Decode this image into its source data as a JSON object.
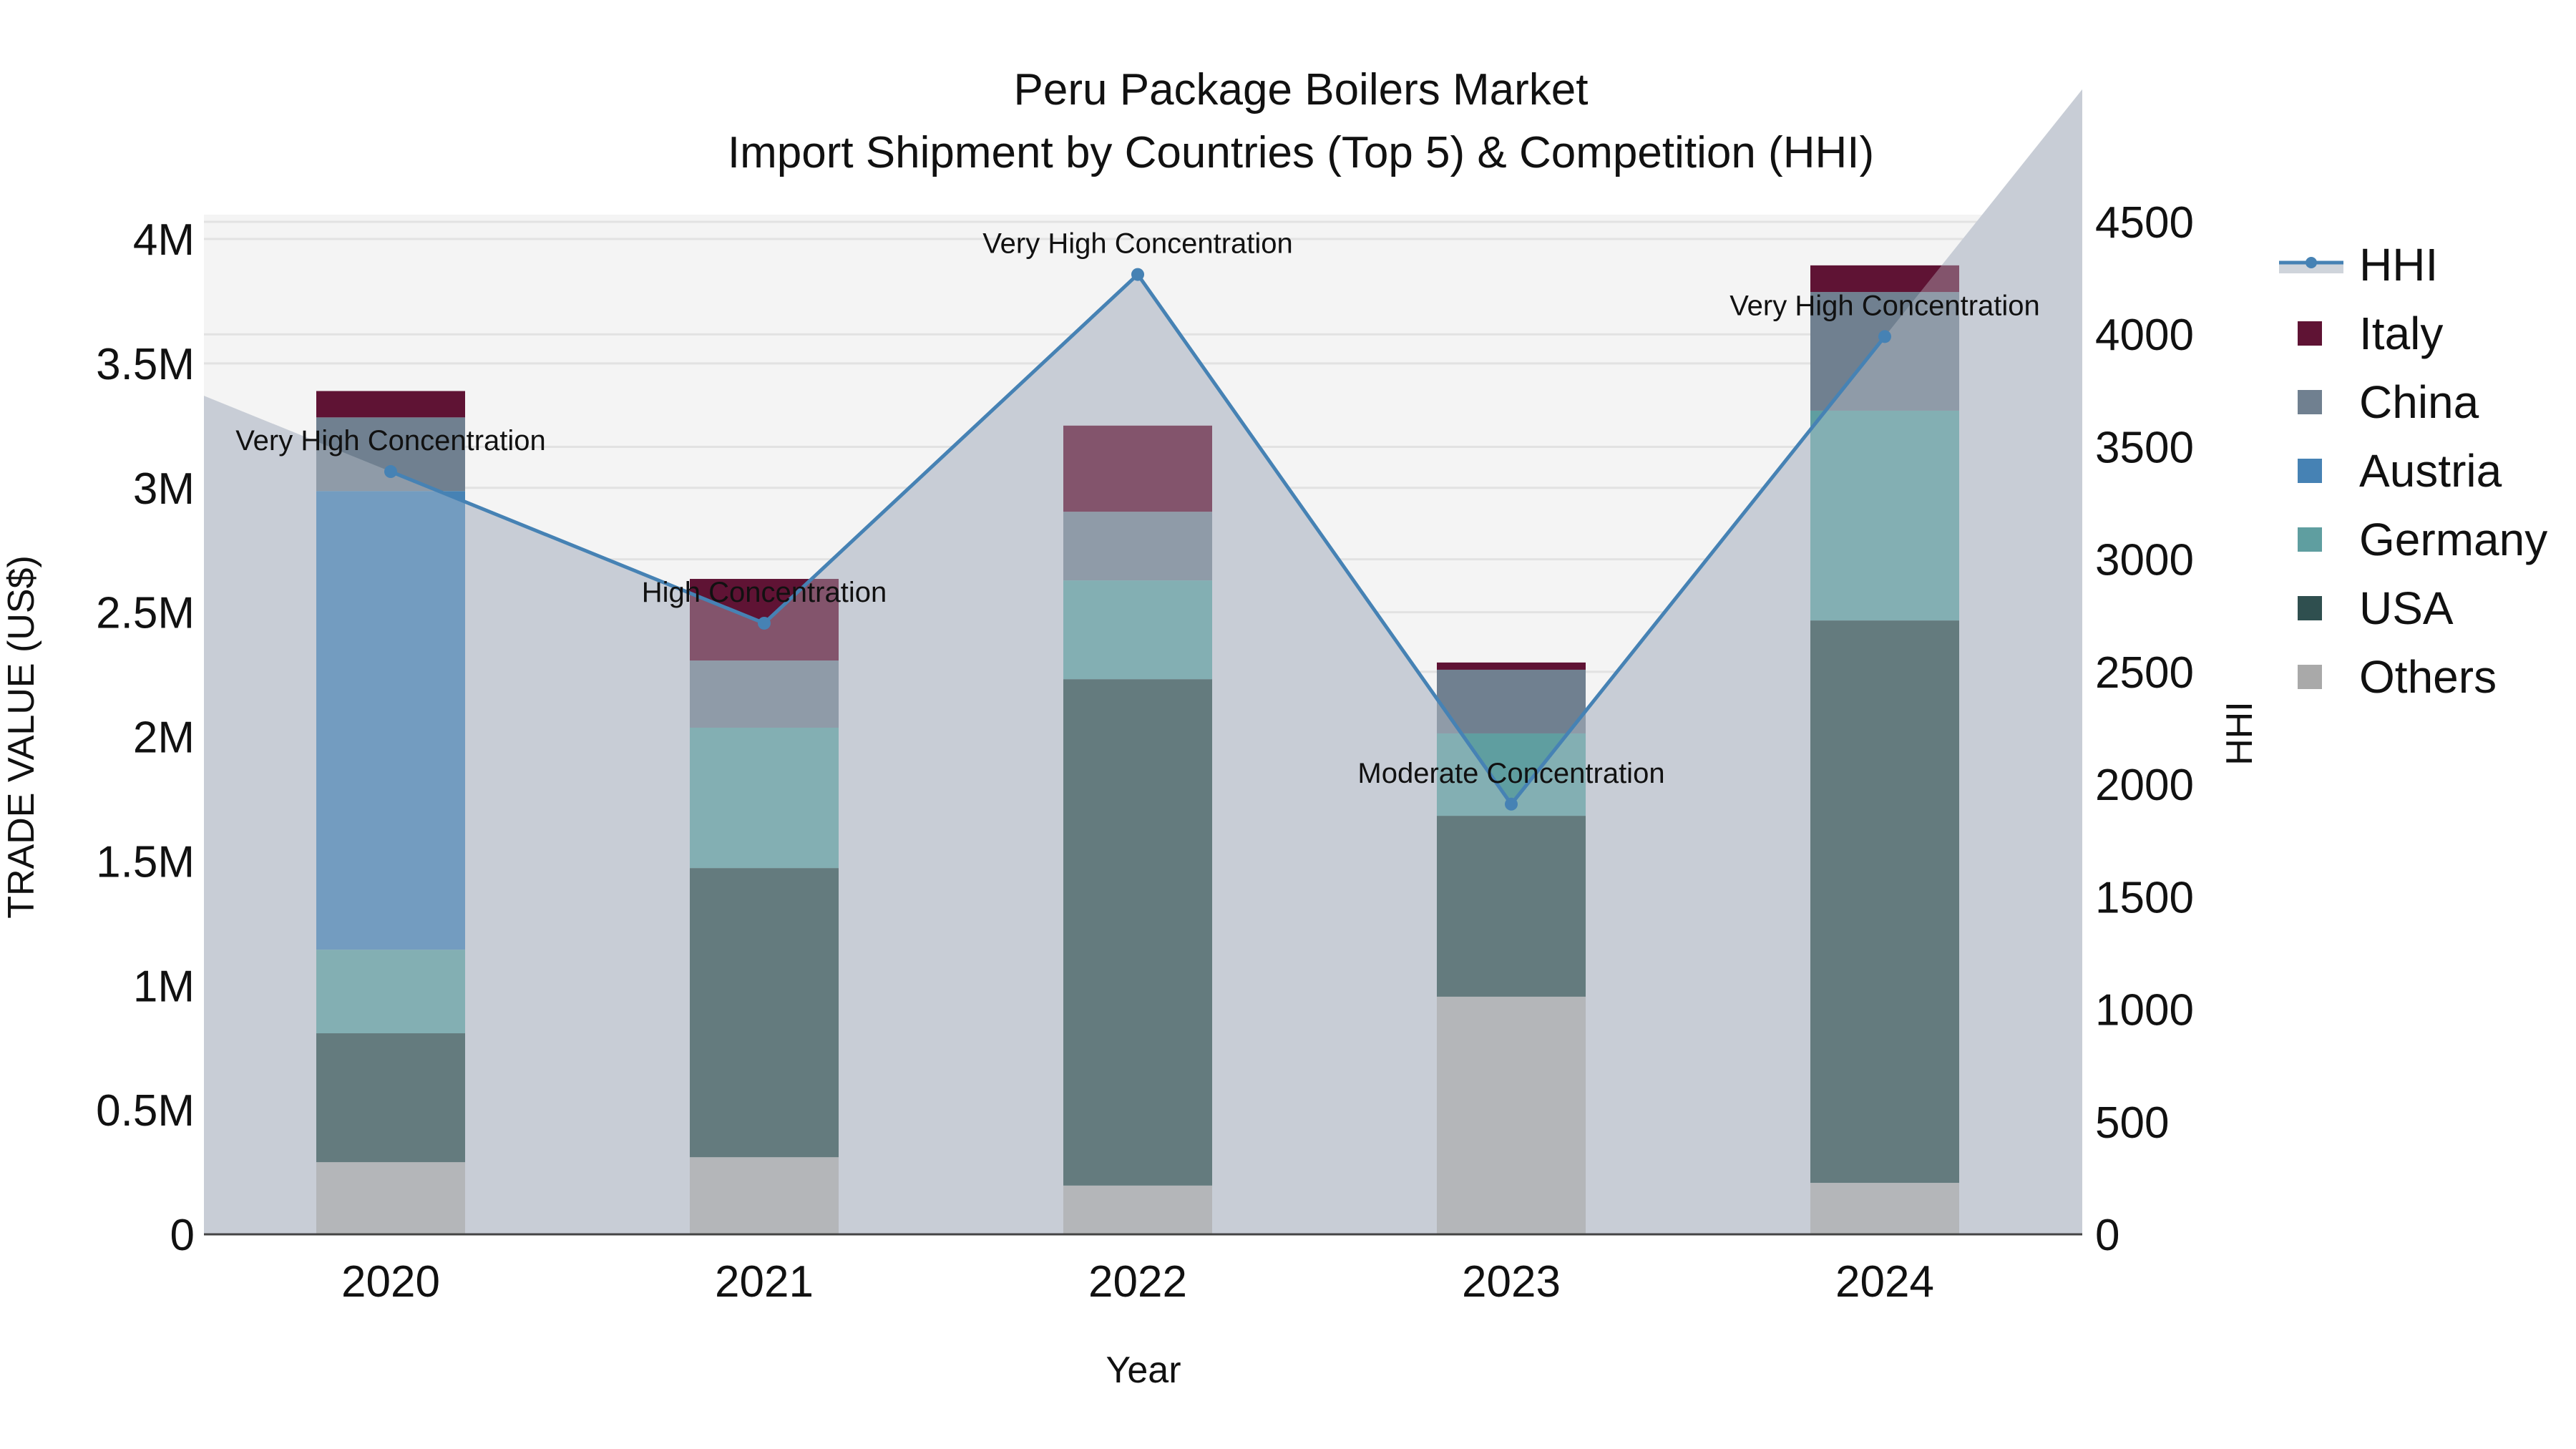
{
  "header": {
    "title_line1": "Peru Package Boilers Market",
    "title_line2": "Import Shipment by Countries (Top 5) & Competition (HHI)"
  },
  "axes": {
    "x_label": "Year",
    "y_left_label": "TRADE VALUE (US$)",
    "y_right_label": "HHI",
    "y_left_ticks": [
      "0",
      "0.5M",
      "1M",
      "1.5M",
      "2M",
      "2.5M",
      "3M",
      "3.5M",
      "4M"
    ],
    "y_right_ticks": [
      "0",
      "500",
      "1000",
      "1500",
      "2000",
      "2500",
      "3000",
      "3500",
      "4000",
      "4500"
    ],
    "x_ticks": [
      "2020",
      "2021",
      "2022",
      "2023",
      "2024"
    ]
  },
  "legend": {
    "items": [
      {
        "label": "HHI",
        "type": "line",
        "color": "#4682b4"
      },
      {
        "label": "Italy",
        "type": "bar",
        "color": "#5f1334"
      },
      {
        "label": "China",
        "type": "bar",
        "color": "#708090"
      },
      {
        "label": "Austria",
        "type": "bar",
        "color": "#4682b4"
      },
      {
        "label": "Germany",
        "type": "bar",
        "color": "#5f9ea0"
      },
      {
        "label": "USA",
        "type": "bar",
        "color": "#2f4f4f"
      },
      {
        "label": "Others",
        "type": "bar",
        "color": "#a9a9a9"
      }
    ]
  },
  "colors": {
    "plot_bg": "#f4f4f4",
    "grid": "#e2e2e2",
    "hhi_line": "#4682b4",
    "hhi_fill": "#c8cdd6",
    "axis_line": "#444444"
  },
  "chart_data": {
    "type": "bar",
    "title": "Peru Package Boilers Market - Import Shipment by Countries (Top 5) & Competition (HHI)",
    "xlabel": "Year",
    "ylabel": "TRADE VALUE (US$)",
    "y2label": "HHI",
    "categories": [
      "2020",
      "2021",
      "2022",
      "2023",
      "2024"
    ],
    "stack_order": [
      "Others",
      "USA",
      "Germany",
      "Austria",
      "China",
      "Italy"
    ],
    "series": [
      {
        "name": "Others",
        "color": "#a9a9a9",
        "values": [
          290000,
          310000,
          196000,
          955000,
          207000
        ]
      },
      {
        "name": "USA",
        "color": "#2f4f4f",
        "values": [
          518000,
          1162000,
          2035000,
          727000,
          2260000
        ]
      },
      {
        "name": "Germany",
        "color": "#5f9ea0",
        "values": [
          336000,
          564000,
          397000,
          331000,
          843000
        ]
      },
      {
        "name": "Austria",
        "color": "#4682b4",
        "values": [
          1843000,
          0,
          0,
          0,
          0
        ]
      },
      {
        "name": "China",
        "color": "#708090",
        "values": [
          296000,
          270000,
          276000,
          256000,
          477000
        ]
      },
      {
        "name": "Italy",
        "color": "#5f1334",
        "values": [
          106000,
          328000,
          346000,
          29000,
          107000
        ]
      }
    ],
    "totals": [
      3389000,
      2634000,
      3250000,
      2298000,
      3894000
    ],
    "hhi": {
      "name": "HHI",
      "type": "line+area",
      "values": [
        3390,
        2716,
        4266,
        1912,
        3990
      ],
      "annotations": [
        "Very High Concentration",
        "High Concentration",
        "Very High Concentration",
        "Moderate Concentration",
        "Very High Concentration"
      ]
    },
    "ylim": [
      0,
      4070000
    ],
    "y2lim": [
      0,
      4500
    ],
    "grid": true,
    "legend_position": "right"
  }
}
